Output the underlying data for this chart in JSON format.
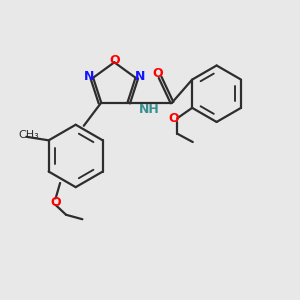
{
  "bg_color": "#e8e8e8",
  "bond_color": "#2d2d2d",
  "N_color": "#1414ff",
  "O_color": "#ff0000",
  "NH_color": "#3a9090",
  "line_width": 1.6,
  "fig_size": [
    3.0,
    3.0
  ],
  "dpi": 100,
  "xlim": [
    0,
    10
  ],
  "ylim": [
    0,
    10
  ]
}
